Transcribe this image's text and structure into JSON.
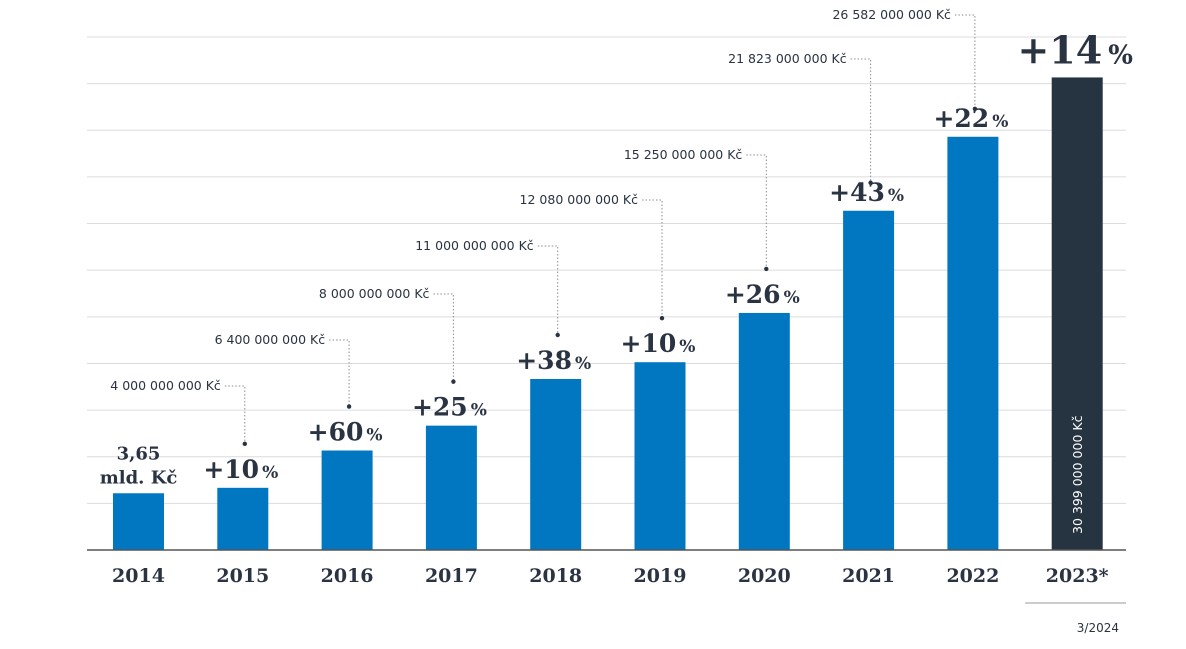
{
  "chart_data": {
    "type": "bar",
    "categories": [
      "2014",
      "2015",
      "2016",
      "2017",
      "2018",
      "2019",
      "2020",
      "2021",
      "2022",
      "2023*"
    ],
    "values": [
      3650000000,
      4000000000,
      6400000000,
      8000000000,
      11000000000,
      12080000000,
      15250000000,
      21823000000,
      26582000000,
      30399000000
    ],
    "value_labels": [
      "",
      "4 000 000 000 Kč",
      "6 400 000 000 Kč",
      "8 000 000 000 Kč",
      "11 000 000 000 Kč",
      "12 080 000 000 Kč",
      "15 250 000 000 Kč",
      "21 823 000 000 Kč",
      "26 582 000 000 Kč",
      "30 399 000 000 Kč"
    ],
    "growth_numbers": [
      "",
      "+10",
      "+60",
      "+25",
      "+38",
      "+10",
      "+26",
      "+43",
      "+22",
      "+14"
    ],
    "growth_unit": "%",
    "first_label_lines": [
      "3,65",
      "mld. Kč"
    ],
    "ylim": [
      0,
      33000000000
    ],
    "grid": true,
    "colors": {
      "bar": "#0077c0",
      "highlight": "#263442",
      "text": "#2a3342",
      "grid": "#dcdcdc",
      "axis": "#555555"
    },
    "footnote": "3/2024"
  }
}
